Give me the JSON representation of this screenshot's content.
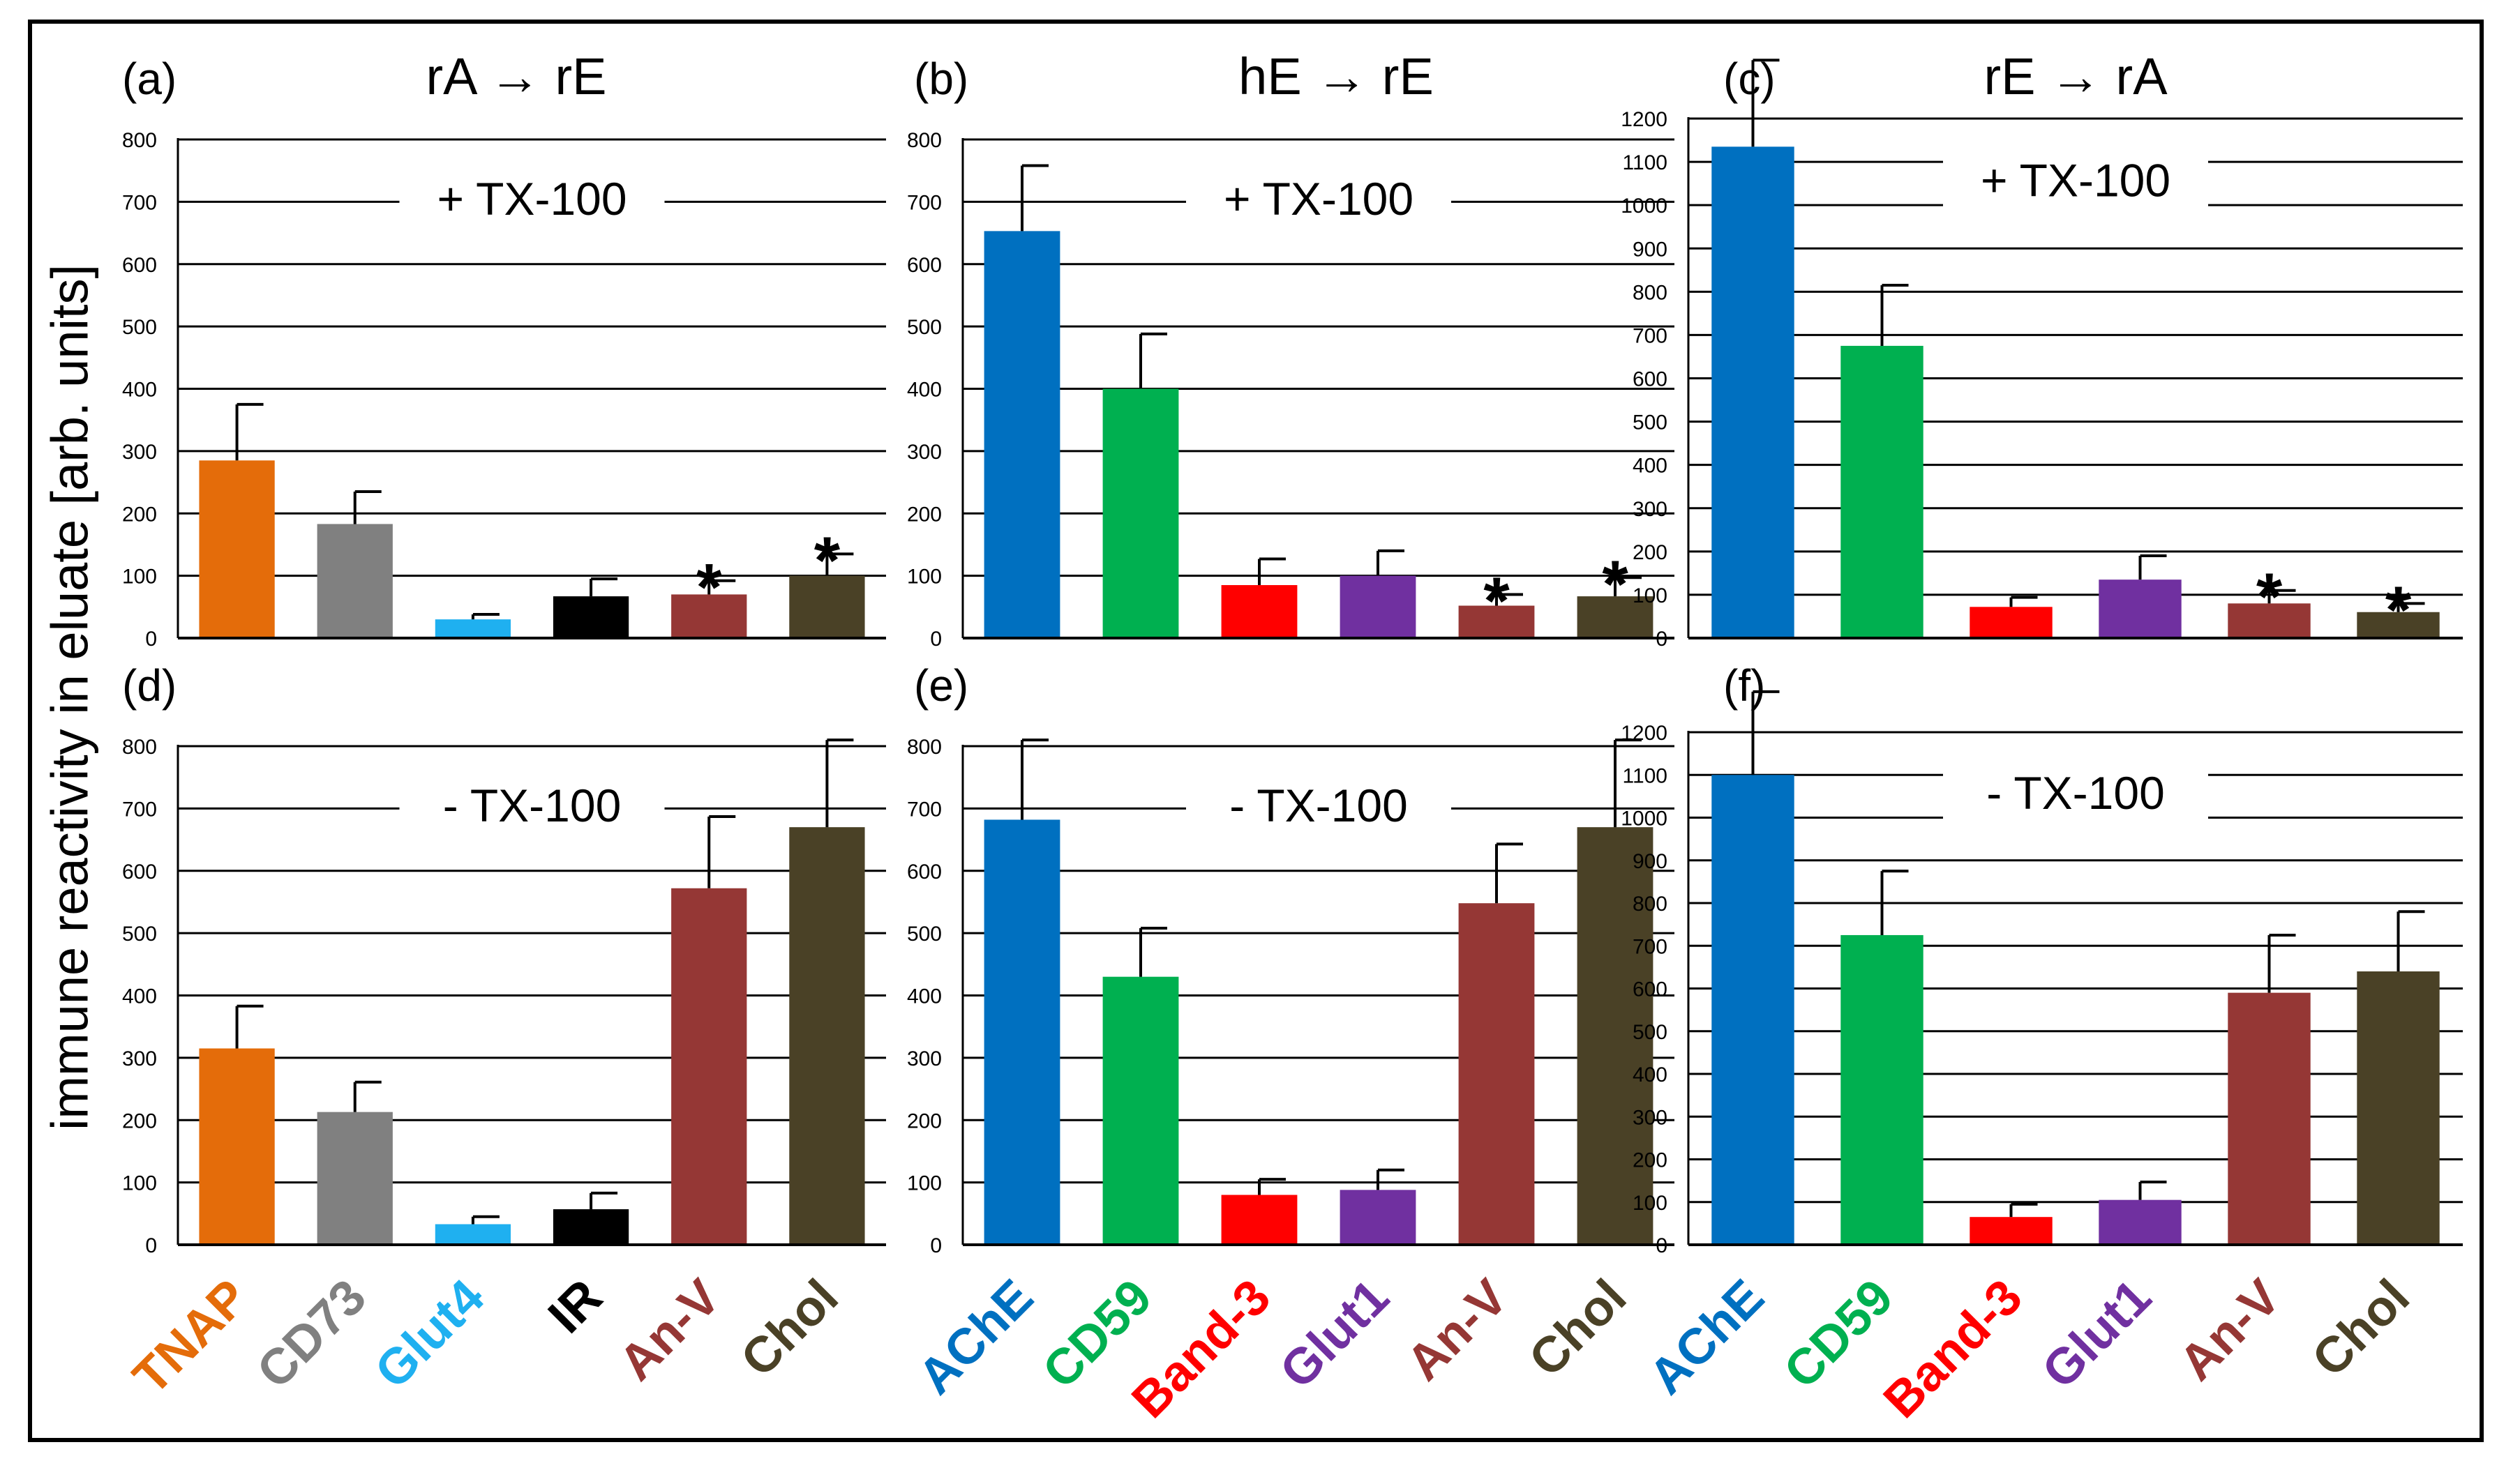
{
  "figure": {
    "ylabel": "immune reactivity in eluate [arb. units]",
    "colors": {
      "TNAP": "#E46C0A",
      "CD73": "#808080",
      "Glut4": "#1FB0F0",
      "IR": "#000000",
      "AChE": "#0070C0",
      "CD59": "#00B050",
      "Band-3": "#FF0000",
      "Glut1": "#7030A0",
      "An-V": "#953735",
      "Chol": "#4A4126"
    }
  },
  "chart_data": [
    {
      "panel": "(a)",
      "title": "rA → rE",
      "annotation": "+ TX-100",
      "type": "bar",
      "ylim": [
        0,
        800
      ],
      "ytick_step": 100,
      "categories": [
        "TNAP",
        "CD73",
        "Glut4",
        "IR",
        "An-V",
        "Chol"
      ],
      "values": [
        285,
        183,
        30,
        67,
        70,
        100
      ],
      "errors": [
        90,
        52,
        8,
        28,
        22,
        35
      ],
      "significant": [
        false,
        false,
        false,
        false,
        true,
        true
      ]
    },
    {
      "panel": "(b)",
      "title": "hE → rE",
      "annotation": "+ TX-100",
      "type": "bar",
      "ylim": [
        0,
        800
      ],
      "ytick_step": 100,
      "categories": [
        "AChE",
        "CD59",
        "Band-3",
        "Glut1",
        "An-V",
        "Chol"
      ],
      "values": [
        653,
        400,
        85,
        100,
        52,
        67
      ],
      "errors": [
        105,
        88,
        42,
        40,
        18,
        30
      ],
      "significant": [
        false,
        false,
        false,
        false,
        true,
        true
      ]
    },
    {
      "panel": "(c)",
      "title": "rE → rA",
      "annotation": "+ TX-100",
      "type": "bar",
      "ylim": [
        0,
        1200
      ],
      "ytick_step": 100,
      "categories": [
        "AChE",
        "CD59",
        "Band-3",
        "Glut1",
        "An-V",
        "Chol"
      ],
      "values": [
        1135,
        675,
        72,
        135,
        80,
        60
      ],
      "errors": [
        200,
        140,
        22,
        55,
        30,
        20
      ],
      "significant": [
        false,
        false,
        false,
        false,
        true,
        true
      ]
    },
    {
      "panel": "(d)",
      "title": "",
      "annotation": "- TX-100",
      "type": "bar",
      "ylim": [
        0,
        800
      ],
      "ytick_step": 100,
      "categories": [
        "TNAP",
        "CD73",
        "Glut4",
        "IR",
        "An-V",
        "Chol"
      ],
      "values": [
        315,
        213,
        33,
        57,
        572,
        670
      ],
      "errors": [
        68,
        48,
        12,
        26,
        115,
        140
      ],
      "significant": [
        false,
        false,
        false,
        false,
        false,
        false
      ]
    },
    {
      "panel": "(e)",
      "title": "",
      "annotation": "- TX-100",
      "type": "bar",
      "ylim": [
        0,
        800
      ],
      "ytick_step": 100,
      "categories": [
        "AChE",
        "CD59",
        "Band-3",
        "Glut1",
        "An-V",
        "Chol"
      ],
      "values": [
        682,
        430,
        80,
        88,
        548,
        670
      ],
      "errors": [
        128,
        78,
        25,
        32,
        95,
        140
      ],
      "significant": [
        false,
        false,
        false,
        false,
        false,
        false
      ]
    },
    {
      "panel": "(f)",
      "title": "",
      "annotation": "- TX-100",
      "type": "bar",
      "ylim": [
        0,
        1200
      ],
      "ytick_step": 100,
      "categories": [
        "AChE",
        "CD59",
        "Band-3",
        "Glut1",
        "An-V",
        "Chol"
      ],
      "values": [
        1100,
        725,
        65,
        105,
        590,
        640
      ],
      "errors": [
        195,
        150,
        30,
        42,
        135,
        140
      ],
      "significant": [
        false,
        false,
        false,
        false,
        false,
        false
      ]
    }
  ]
}
